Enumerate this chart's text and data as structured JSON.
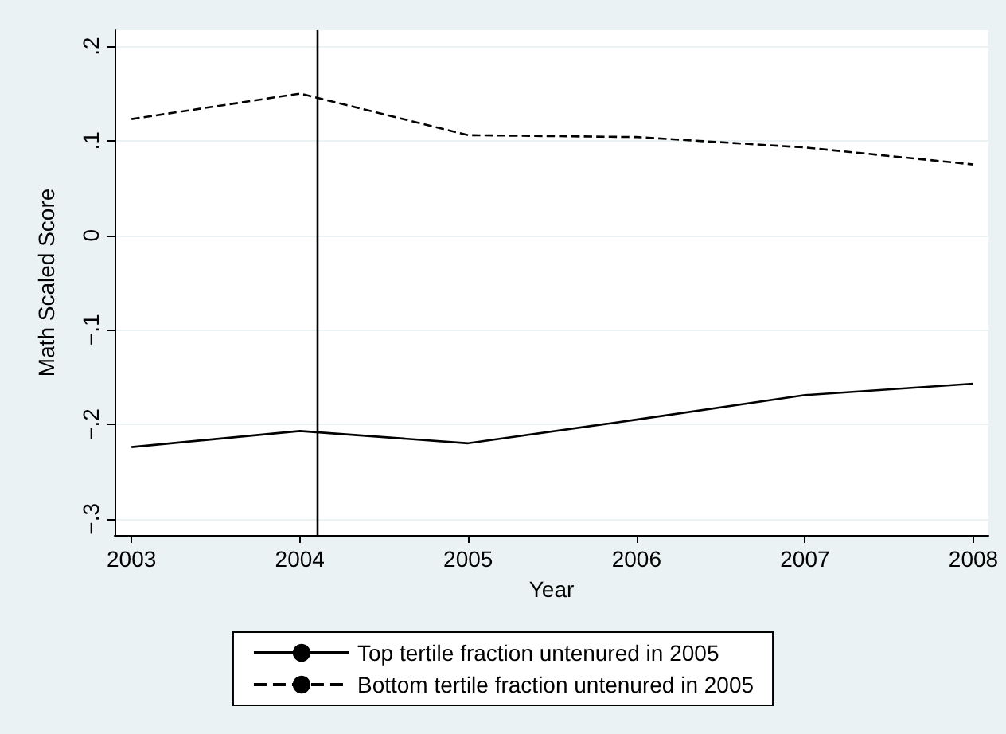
{
  "chart_data": {
    "type": "line",
    "xlabel": "Year",
    "ylabel": "Math Scaled Score",
    "x": [
      2003,
      2004,
      2005,
      2006,
      2007,
      2008
    ],
    "series": [
      {
        "name": "Top tertile fraction untenured in 2005",
        "color": "#000000",
        "line_style": "solid",
        "values": [
          -0.224,
          -0.207,
          -0.22,
          -0.195,
          -0.169,
          -0.157
        ]
      },
      {
        "name": "Bottom tertile fraction untenured in 2005",
        "color": "#000000",
        "line_style": "dashed",
        "values": [
          0.123,
          0.15,
          0.106,
          0.104,
          0.093,
          0.075
        ]
      }
    ],
    "xlim": [
      2002.9,
      2008.09
    ],
    "xticks": [
      2003,
      2004,
      2005,
      2006,
      2007,
      2008
    ],
    "ylim": [
      -0.317,
      0.217
    ],
    "yticks": [
      {
        "value": -0.3,
        "label": "−.3"
      },
      {
        "value": -0.2,
        "label": "−.2"
      },
      {
        "value": -0.1,
        "label": "−.1"
      },
      {
        "value": 0,
        "label": "0"
      },
      {
        "value": 0.1,
        "label": ".1"
      },
      {
        "value": 0.2,
        "label": ".2"
      }
    ],
    "ref_lines": [
      {
        "axis": "x",
        "value": 2004.1,
        "color": "#000000"
      }
    ],
    "grid": "y",
    "legend": "bottom",
    "marker": "none"
  }
}
